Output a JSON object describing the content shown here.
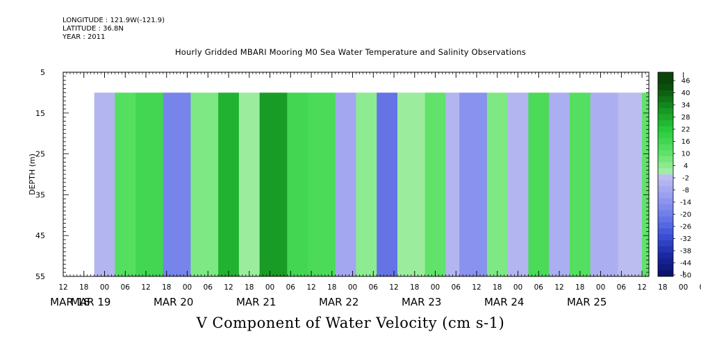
{
  "header": {
    "longitude": "LONGITUDE : 121.9W(-121.9)",
    "latitude": "LATITUDE : 36.8N",
    "year": "YEAR : 2011"
  },
  "chart_data": {
    "type": "heatmap",
    "title": "Hourly Gridded MBARI Mooring M0 Sea Water Temperature and Salinity Observations",
    "variable_label": "V Component of Water Velocity (cm s-1)",
    "ylabel": "DEPTH (m)",
    "ylim": [
      5,
      55
    ],
    "y_inverted": true,
    "y_ticks": [
      5,
      15,
      25,
      35,
      45,
      55
    ],
    "data_depth_range": [
      10,
      55
    ],
    "x_start": "MAR 18 12:00",
    "x_end": "MAR 25 14:00",
    "data_start": "MAR 18 21:00",
    "x_hour_ticks": [
      "12",
      "18",
      "00",
      "06",
      "12",
      "18",
      "00",
      "06",
      "12",
      "18",
      "00",
      "06",
      "12",
      "18",
      "00",
      "06",
      "12",
      "18",
      "00",
      "06",
      "12",
      "18",
      "00",
      "06",
      "12",
      "18",
      "00",
      "06",
      "12",
      "18",
      "00",
      "06",
      "12"
    ],
    "x_day_labels": [
      "MAR 18",
      "MAR 19",
      "MAR 20",
      "MAR 21",
      "MAR 22",
      "MAR 23",
      "MAR 24",
      "MAR 25"
    ],
    "colorbar": {
      "labels": [
        "46",
        "40",
        "34",
        "28",
        "22",
        "16",
        "10",
        "4",
        "-2",
        "-8",
        "-14",
        "-20",
        "-26",
        "-32",
        "-38",
        "-44",
        "-50"
      ],
      "range": [
        -50,
        50
      ]
    },
    "dominant_bands": [
      {
        "time": "MAR 18 21:00",
        "value": -4
      },
      {
        "time": "MAR 19 03:00",
        "value": 12
      },
      {
        "time": "MAR 19 09:00",
        "value": 16
      },
      {
        "time": "MAR 19 17:00",
        "value": -18
      },
      {
        "time": "MAR 20 01:00",
        "value": 6
      },
      {
        "time": "MAR 20 09:00",
        "value": 26
      },
      {
        "time": "MAR 20 15:00",
        "value": 2
      },
      {
        "time": "MAR 20 21:00",
        "value": 30
      },
      {
        "time": "MAR 21 05:00",
        "value": 16
      },
      {
        "time": "MAR 21 11:00",
        "value": 14
      },
      {
        "time": "MAR 21 19:00",
        "value": -8
      },
      {
        "time": "MAR 22 01:00",
        "value": 4
      },
      {
        "time": "MAR 22 07:00",
        "value": -22
      },
      {
        "time": "MAR 22 13:00",
        "value": 2
      },
      {
        "time": "MAR 22 21:00",
        "value": 10
      },
      {
        "time": "MAR 23 03:00",
        "value": -4
      },
      {
        "time": "MAR 23 07:00",
        "value": -14
      },
      {
        "time": "MAR 23 15:00",
        "value": 6
      },
      {
        "time": "MAR 23 21:00",
        "value": -4
      },
      {
        "time": "MAR 24 03:00",
        "value": 14
      },
      {
        "time": "MAR 24 09:00",
        "value": -6
      },
      {
        "time": "MAR 24 15:00",
        "value": 12
      },
      {
        "time": "MAR 24 21:00",
        "value": -6
      },
      {
        "time": "MAR 25 05:00",
        "value": -2
      },
      {
        "time": "MAR 25 12:00",
        "value": 10
      }
    ]
  }
}
